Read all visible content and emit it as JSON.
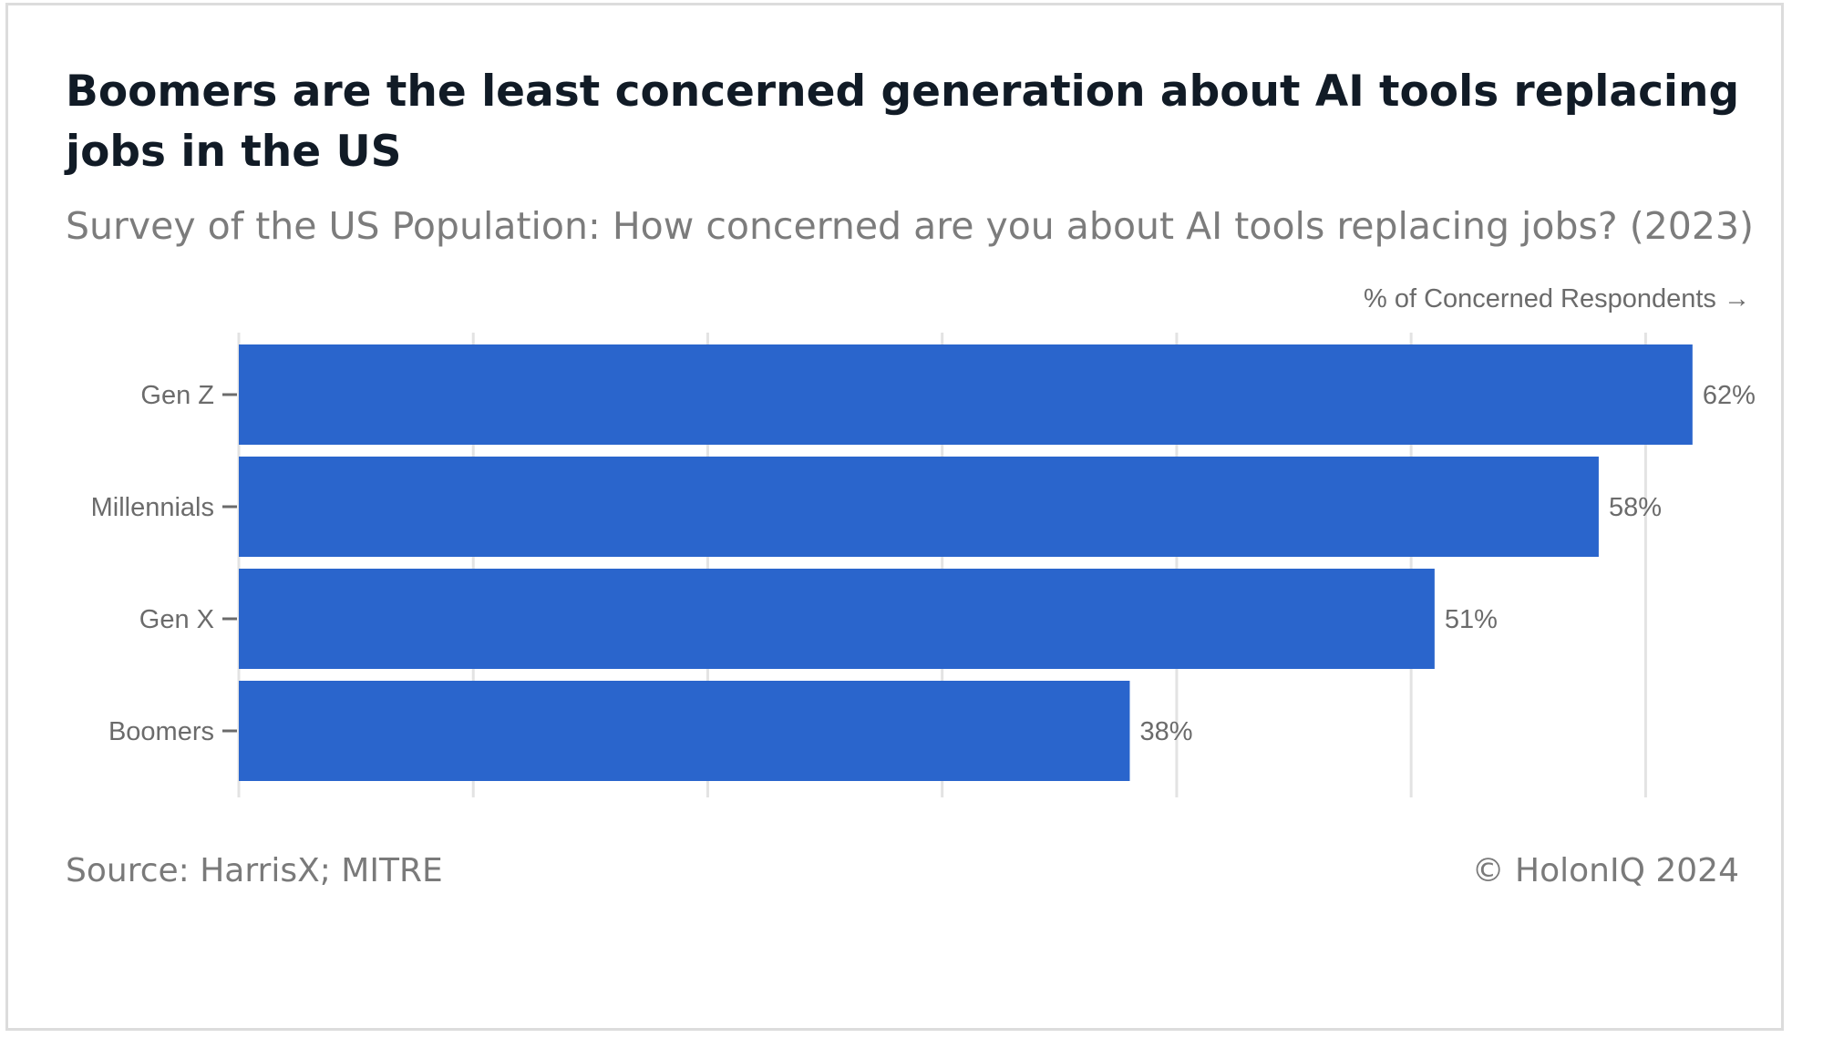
{
  "header": {
    "title": "Boomers are the least concerned generation about AI tools replacing jobs in the US",
    "subtitle": "Survey of the US Population: How concerned are you about AI tools replacing jobs? (2023)"
  },
  "footer": {
    "source": "Source: HarrisX; MITRE",
    "credit": "© HolonIQ 2024"
  },
  "colors": {
    "bar": "#2a65cc",
    "grid": "#e3e3e3",
    "axis_text": "#6b6b6b"
  },
  "chart_data": {
    "type": "bar",
    "orientation": "horizontal",
    "categories": [
      "Gen Z",
      "Millennials",
      "Gen X",
      "Boomers"
    ],
    "values": [
      62,
      58,
      51,
      38
    ],
    "value_labels": [
      "62%",
      "58%",
      "51%",
      "38%"
    ],
    "xlabel": "% of Concerned Respondents →",
    "xlim": [
      0,
      65
    ],
    "grid_step": 10,
    "grid": true
  }
}
